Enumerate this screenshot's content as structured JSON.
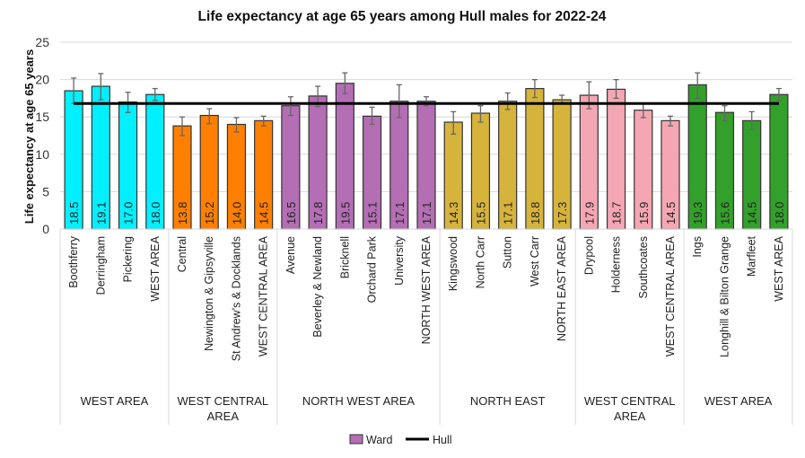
{
  "chart_data": {
    "type": "bar",
    "title": "Life expectancy at age 65 years among Hull males for 2022-24",
    "ylabel": "Life expectancy at age 65 years",
    "xlabel": "",
    "ylim": [
      0,
      25
    ],
    "yticks": [
      0,
      5,
      10,
      15,
      20,
      25
    ],
    "grid": true,
    "legend_position": "bottom",
    "groups": [
      {
        "label": [
          "WEST AREA"
        ],
        "color": "#00F0FF",
        "count": 4
      },
      {
        "label": [
          "WEST CENTRAL",
          "AREA"
        ],
        "color": "#FF8000",
        "count": 4
      },
      {
        "label": [
          "NORTH WEST AREA"
        ],
        "color": "#B46EB4",
        "count": 6
      },
      {
        "label": [
          "NORTH EAST"
        ],
        "color": "#D6B43C",
        "count": 5
      },
      {
        "label": [
          "WEST CENTRAL",
          "AREA"
        ],
        "color": "#F4A7B2",
        "count": 4
      },
      {
        "label": [
          "WEST AREA"
        ],
        "color": "#33A02C",
        "count": 4
      }
    ],
    "categories": [
      "Boothferry",
      "Derringham",
      "Pickering",
      "WEST AREA",
      "Central",
      "Newington & Gipsyville",
      "St Andrew's & Docklands",
      "WEST CENTRAL AREA",
      "Avenue",
      "Beverley & Newland",
      "Bricknell",
      "Orchard Park",
      "University",
      "NORTH WEST AREA",
      "Kingswood",
      "North Carr",
      "Sutton",
      "West Carr",
      "NORTH EAST AREA",
      "Drypool",
      "Holderness",
      "Southcoates",
      "WEST CENTRAL AREA",
      "Ings",
      "Longhill & Bilton Grange",
      "Marfleet",
      "WEST AREA"
    ],
    "series": [
      {
        "name": "Ward",
        "values": [
          18.5,
          19.1,
          17.0,
          18.0,
          13.8,
          15.2,
          14.0,
          14.5,
          16.5,
          17.8,
          19.5,
          15.1,
          17.1,
          17.1,
          14.3,
          15.5,
          17.1,
          18.8,
          17.3,
          17.9,
          18.7,
          15.9,
          14.5,
          19.3,
          15.6,
          14.5,
          18.0
        ],
        "ci_lower": [
          16.8,
          17.3,
          15.6,
          17.2,
          12.5,
          14.1,
          13.0,
          13.8,
          15.2,
          16.4,
          18.1,
          14.0,
          14.9,
          16.5,
          12.7,
          14.3,
          16.0,
          17.6,
          16.9,
          16.1,
          17.5,
          14.9,
          13.8,
          17.5,
          14.5,
          13.3,
          17.2
        ],
        "ci_upper": [
          20.2,
          20.8,
          18.3,
          18.8,
          15.0,
          16.1,
          14.9,
          15.1,
          17.7,
          19.1,
          20.9,
          16.3,
          19.3,
          17.7,
          15.7,
          16.5,
          18.2,
          20.0,
          17.9,
          19.7,
          20.0,
          16.8,
          15.1,
          20.9,
          16.5,
          15.7,
          18.8
        ]
      },
      {
        "name": "Hull",
        "type": "line",
        "value": 16.8,
        "color": "#000000"
      }
    ],
    "legend": [
      "Ward",
      "Hull"
    ],
    "legend_swatch_color": "#B46EB4"
  }
}
